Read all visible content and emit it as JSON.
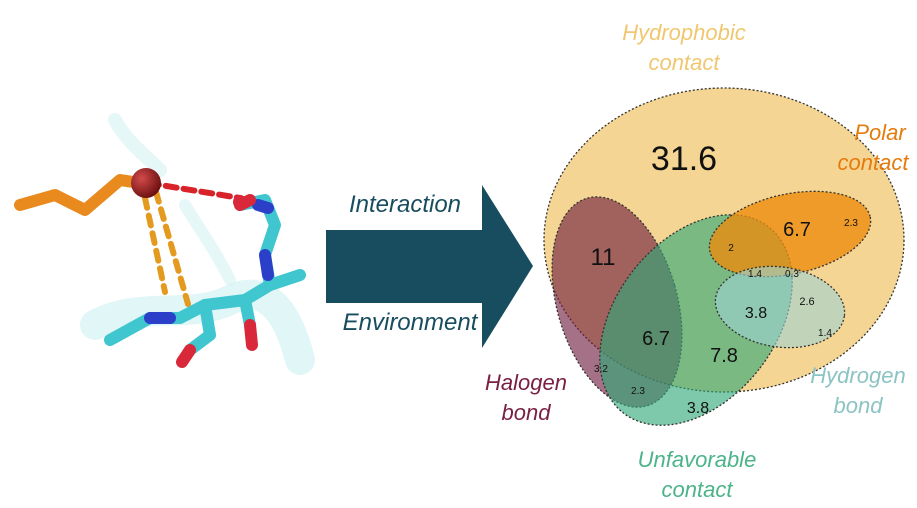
{
  "arrow": {
    "label_top": "Interaction",
    "label_bottom": "Environment",
    "color": "#184d5f"
  },
  "molecule": {
    "carbon_color": "#3fc6cf",
    "ligand_color": "#e88a1e",
    "halogen_color": "#8e1c1c",
    "nitrogen_color": "#2b3fc9",
    "oxygen_color": "#d8283a",
    "halogen_bond_color": "#d8232a",
    "contact_dash_color": "#e39a1f"
  },
  "venn": {
    "categories": {
      "hydrophobic": {
        "line1": "Hydrophobic",
        "line2": "contact",
        "color": "#f0c76f",
        "label_color": "#f0c76f"
      },
      "polar": {
        "line1": "Polar",
        "line2": "contact",
        "color": "#ec8a0c",
        "label_color": "#e47b0c"
      },
      "halogen": {
        "line1": "Halogen",
        "line2": "bond",
        "color": "#6e1a3c",
        "label_color": "#7a2044"
      },
      "unfavorable": {
        "line1": "Unfavorable",
        "line2": "contact",
        "color": "#2fa878",
        "label_color": "#4cb38a"
      },
      "hydrogen": {
        "line1": "Hydrogen",
        "line2": "bond",
        "color": "#9fd3d4",
        "label_color": "#8cc3c3"
      }
    },
    "values": {
      "hydrophobic_only": "31.6",
      "polar_hydrophobic": "6.7",
      "polar_only": "2.3",
      "halogen_hydrophobic": "11",
      "polar_unfav_hydrophobic": "2",
      "core_1_4": "1.4",
      "core_0_3": "0.3",
      "hydrogen_hydrophobic": "2.6",
      "hydrogen_only": "1.4",
      "hydrogen_unfav_hydrophobic": "3.8",
      "halogen_unfav_hydrophobic": "6.7",
      "unfav_hydrophobic": "7.8",
      "halogen_only": "3.2",
      "halogen_unfav": "2.3",
      "unfavorable_only": "3.8"
    }
  }
}
